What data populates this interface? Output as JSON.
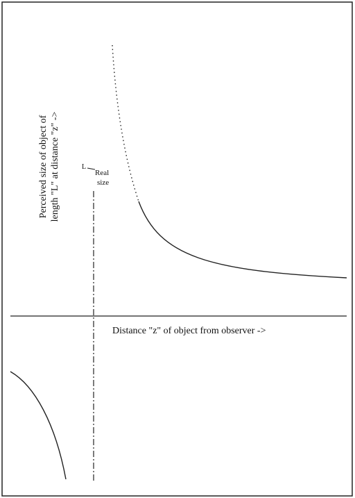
{
  "y_axis_label": [
    "Perceived size of object of",
    "length \"L\" at distance \"z\" ->"
  ],
  "x_axis_label": "Distance \"z\" of object from observer ->",
  "length_label": "L",
  "real_size_label": [
    "Real",
    "size"
  ]
}
